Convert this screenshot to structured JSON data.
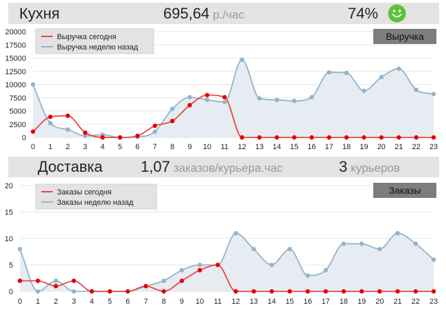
{
  "kitchen": {
    "title": "Кухня",
    "revenue_rate": "695,64",
    "revenue_unit": "р./час",
    "percent": "74%",
    "smiley_icon": "happy-face-icon",
    "smiley_color": "#5cc33a"
  },
  "delivery": {
    "title": "Доставка",
    "orders_rate": "1,07",
    "orders_unit": "заказов/курьера.час",
    "couriers": "3",
    "couriers_unit": "курьеров"
  },
  "colors": {
    "today": "#e8473f",
    "week_ago": "#93b4c8",
    "week_ago_fill": "#e6ecf1",
    "today_point": "#e60000",
    "header_bg": "#e3e3e3",
    "badge_bg": "#7d7d7d"
  },
  "chart_data": [
    {
      "type": "area",
      "badge": "Выручка",
      "x": [
        0,
        1,
        2,
        3,
        4,
        5,
        6,
        7,
        8,
        9,
        10,
        11,
        12,
        13,
        14,
        15,
        16,
        17,
        18,
        19,
        20,
        21,
        22,
        23
      ],
      "ylim": [
        0,
        20000
      ],
      "yticks": [
        "0",
        "2500",
        "5000",
        "7500",
        "10000",
        "12500",
        "15000",
        "17500",
        "20000"
      ],
      "ytick_values": [
        0,
        2500,
        5000,
        7500,
        10000,
        12500,
        15000,
        17500,
        20000
      ],
      "legend_position": "top-left",
      "grid": true,
      "series": [
        {
          "name": "Выручка сегодня",
          "values": [
            1100,
            3900,
            4100,
            900,
            0,
            0,
            300,
            2200,
            3100,
            6100,
            8000,
            7600,
            0,
            0,
            0,
            0,
            0,
            0,
            0,
            0,
            0,
            0,
            0,
            0
          ]
        },
        {
          "name": "Выручка неделю назад",
          "values": [
            10000,
            2700,
            1500,
            300,
            500,
            0,
            100,
            1100,
            5400,
            7600,
            7100,
            6700,
            14700,
            7400,
            7100,
            6900,
            7600,
            12300,
            12200,
            8800,
            11400,
            13000,
            9000,
            8200
          ]
        }
      ]
    },
    {
      "type": "area",
      "badge": "Заказы",
      "x": [
        0,
        1,
        2,
        3,
        4,
        5,
        6,
        7,
        8,
        9,
        10,
        11,
        12,
        13,
        14,
        15,
        16,
        17,
        18,
        19,
        20,
        21,
        22,
        23
      ],
      "ylim": [
        0,
        20
      ],
      "yticks": [
        "0",
        "5",
        "10",
        "15",
        "20"
      ],
      "ytick_values": [
        0,
        5,
        10,
        15,
        20
      ],
      "legend_position": "top-left",
      "grid": true,
      "series": [
        {
          "name": "Заказы сегодня",
          "values": [
            2,
            2,
            1,
            2,
            0,
            0,
            0,
            1,
            0,
            2,
            4,
            5,
            0,
            0,
            0,
            0,
            0,
            0,
            0,
            0,
            0,
            0,
            0,
            0
          ]
        },
        {
          "name": "Заказы неделю назад",
          "values": [
            8,
            0,
            2,
            0,
            0,
            0,
            0,
            1,
            2,
            4,
            5,
            5,
            11,
            8,
            5,
            8,
            3,
            4,
            9,
            9,
            8,
            11,
            9,
            6
          ]
        }
      ]
    }
  ]
}
